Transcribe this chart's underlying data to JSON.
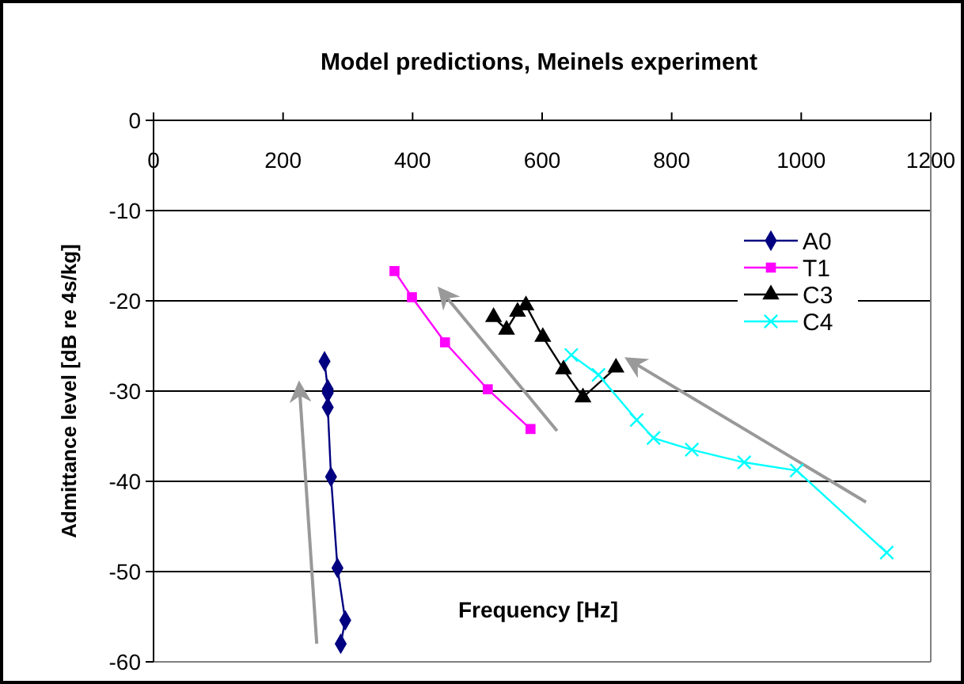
{
  "chart_data": {
    "type": "line",
    "title": "Model predictions, Meinels experiment",
    "xlabel": "Frequency [Hz]",
    "ylabel": "Admittance level [dB re 4s/kg]",
    "xlim": [
      0,
      1200
    ],
    "xticks": [
      0,
      200,
      400,
      600,
      800,
      1000,
      1200
    ],
    "ylim": [
      -60,
      0
    ],
    "yticks": [
      -60,
      -50,
      -40,
      -30,
      -20,
      -10,
      0
    ],
    "grid": "y",
    "legend": "right",
    "series": [
      {
        "name": "A0",
        "color": "#000080",
        "marker": "diamond",
        "x": [
          264,
          269,
          269,
          269,
          274,
          284,
          296,
          289
        ],
        "values": [
          -26.7,
          -29.8,
          -30.2,
          -31.8,
          -39.5,
          -49.6,
          -55.4,
          -58
        ]
      },
      {
        "name": "T1",
        "color": "#ff00ff",
        "marker": "square",
        "x": [
          372,
          399,
          450,
          516,
          582
        ],
        "values": [
          -16.7,
          -19.6,
          -24.6,
          -29.8,
          -34.2
        ]
      },
      {
        "name": "C3",
        "color": "#000000",
        "marker": "triangle",
        "x": [
          525,
          545,
          562,
          575,
          601,
          633,
          663,
          714
        ],
        "values": [
          -21.8,
          -23.2,
          -21.2,
          -20.5,
          -24,
          -27.6,
          -30.7,
          -27.4
        ]
      },
      {
        "name": "C4",
        "color": "#00ffff",
        "marker": "cross",
        "x": [
          645,
          687,
          746,
          772,
          831,
          912,
          993,
          1132
        ],
        "values": [
          -26,
          -28.2,
          -33.2,
          -35.2,
          -36.5,
          -37.9,
          -38.8,
          -47.9
        ]
      }
    ]
  }
}
